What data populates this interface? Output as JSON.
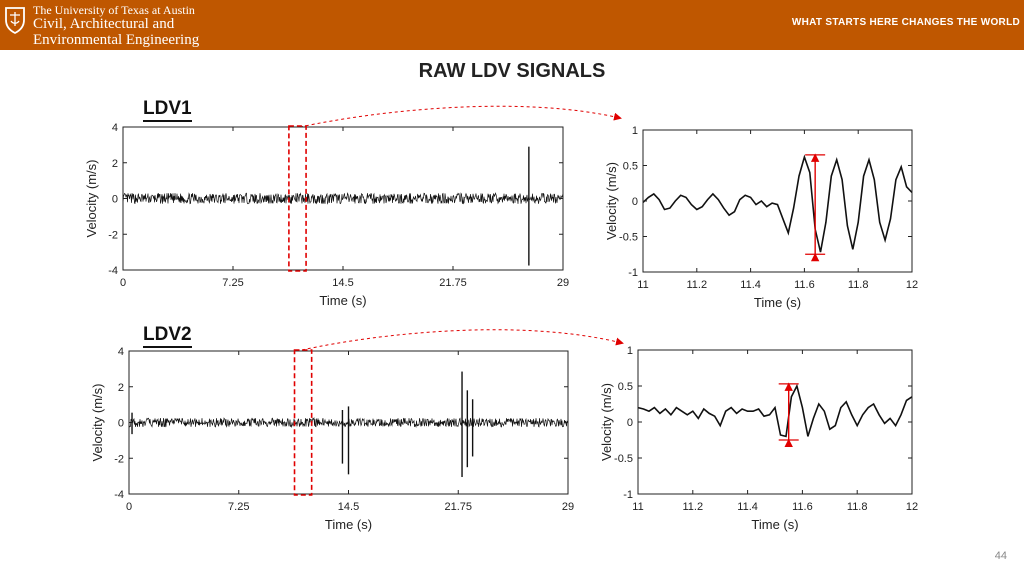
{
  "header": {
    "university": "The University of Texas at Austin",
    "department_line1": "Civil, Architectural and",
    "department_line2": "Environmental Engineering",
    "tagline": "WHAT STARTS HERE CHANGES THE WORLD",
    "color": "#bf5700"
  },
  "title": "RAW LDV SIGNALS",
  "panels": {
    "ldv1_label": "LDV1",
    "ldv2_label": "LDV2"
  },
  "page_number": "44",
  "chart_data": [
    {
      "type": "line",
      "panel": "LDV1",
      "xlabel": "Time (s)",
      "ylabel": "Velocity (m/s)",
      "xlim": [
        0,
        29
      ],
      "ylim": [
        -4,
        4
      ],
      "xticks": [
        0,
        7.25,
        14.5,
        21.75,
        29
      ],
      "xticklabels": [
        "0",
        "7.25",
        "14.5",
        "21.75",
        "29"
      ],
      "yticks": [
        -4,
        -2,
        0,
        2,
        4
      ],
      "yticklabels": [
        "-4",
        "-2",
        "0",
        "2",
        "4"
      ],
      "noise_amplitude": 0.3,
      "spikes": [
        {
          "x": 26.75,
          "max": 2.9,
          "min": -3.75
        }
      ],
      "highlight_window": [
        11,
        12
      ],
      "highlight_color": "#e00000"
    },
    {
      "type": "line",
      "panel": "LDV1-zoom",
      "xlabel": "Time (s)",
      "ylabel": "Velocity (m/s)",
      "xlim": [
        11,
        12
      ],
      "ylim": [
        -1,
        1
      ],
      "xticks": [
        11,
        11.2,
        11.4,
        11.6,
        11.8,
        12
      ],
      "xticklabels": [
        "11",
        "11.2",
        "11.4",
        "11.6",
        "11.8",
        "12"
      ],
      "yticks": [
        -1,
        -0.5,
        0,
        0.5,
        1
      ],
      "yticklabels": [
        "-1",
        "-0.5",
        "0",
        "0.5",
        "1"
      ],
      "x": [
        11,
        11.02,
        11.04,
        11.06,
        11.08,
        11.1,
        11.12,
        11.14,
        11.16,
        11.18,
        11.2,
        11.22,
        11.24,
        11.26,
        11.28,
        11.3,
        11.32,
        11.34,
        11.36,
        11.38,
        11.4,
        11.42,
        11.44,
        11.46,
        11.48,
        11.5,
        11.52,
        11.54,
        11.56,
        11.58,
        11.6,
        11.62,
        11.64,
        11.66,
        11.68,
        11.7,
        11.72,
        11.74,
        11.76,
        11.78,
        11.8,
        11.82,
        11.84,
        11.86,
        11.88,
        11.9,
        11.92,
        11.94,
        11.96,
        11.98,
        12
      ],
      "y": [
        -0.02,
        0.05,
        0.1,
        0.02,
        -0.12,
        -0.1,
        0.0,
        0.08,
        0.05,
        -0.05,
        -0.12,
        -0.08,
        0.02,
        0.1,
        0.02,
        -0.1,
        -0.2,
        -0.15,
        0.02,
        0.08,
        0.05,
        -0.05,
        0.0,
        -0.08,
        -0.03,
        -0.05,
        -0.25,
        -0.45,
        -0.1,
        0.35,
        0.62,
        0.4,
        -0.4,
        -0.72,
        -0.3,
        0.35,
        0.58,
        0.3,
        -0.35,
        -0.68,
        -0.3,
        0.35,
        0.58,
        0.3,
        -0.3,
        -0.55,
        -0.25,
        0.3,
        0.48,
        0.2,
        0.12
      ],
      "annotation": {
        "x": 11.64,
        "y1": -0.75,
        "y2": 0.65
      }
    },
    {
      "type": "line",
      "panel": "LDV2",
      "xlabel": "Time (s)",
      "ylabel": "Velocity (m/s)",
      "xlim": [
        0,
        29
      ],
      "ylim": [
        -4,
        4
      ],
      "xticks": [
        0,
        7.25,
        14.5,
        21.75,
        29
      ],
      "xticklabels": [
        "0",
        "7.25",
        "14.5",
        "21.75",
        "29"
      ],
      "yticks": [
        -4,
        -2,
        0,
        2,
        4
      ],
      "yticklabels": [
        "-4",
        "-2",
        "0",
        "2",
        "4"
      ],
      "noise_amplitude": 0.25,
      "spikes": [
        {
          "x": 0.2,
          "max": 0.55,
          "min": -0.65
        },
        {
          "x": 14.1,
          "max": 0.7,
          "min": -2.3
        },
        {
          "x": 14.5,
          "max": 0.9,
          "min": -2.9
        },
        {
          "x": 22.0,
          "max": 2.85,
          "min": -3.05
        },
        {
          "x": 22.35,
          "max": 1.8,
          "min": -2.5
        },
        {
          "x": 22.7,
          "max": 1.3,
          "min": -1.9
        }
      ],
      "highlight_window": [
        11,
        12
      ],
      "highlight_color": "#e00000"
    },
    {
      "type": "line",
      "panel": "LDV2-zoom",
      "xlabel": "Time (s)",
      "ylabel": "Velocity (m/s)",
      "xlim": [
        11,
        12
      ],
      "ylim": [
        -1,
        1
      ],
      "xticks": [
        11,
        11.2,
        11.4,
        11.6,
        11.8,
        12
      ],
      "xticklabels": [
        "11",
        "11.2",
        "11.4",
        "11.6",
        "11.8",
        "12"
      ],
      "yticks": [
        -1,
        -0.5,
        0,
        0.5,
        1
      ],
      "yticklabels": [
        "-1",
        "-0.5",
        "0",
        "0.5",
        "1"
      ],
      "x": [
        11,
        11.02,
        11.04,
        11.06,
        11.08,
        11.1,
        11.12,
        11.14,
        11.16,
        11.18,
        11.2,
        11.22,
        11.24,
        11.26,
        11.28,
        11.3,
        11.32,
        11.34,
        11.36,
        11.38,
        11.4,
        11.42,
        11.44,
        11.46,
        11.48,
        11.5,
        11.52,
        11.54,
        11.56,
        11.58,
        11.6,
        11.62,
        11.64,
        11.66,
        11.68,
        11.7,
        11.72,
        11.74,
        11.76,
        11.78,
        11.8,
        11.82,
        11.84,
        11.86,
        11.88,
        11.9,
        11.92,
        11.94,
        11.96,
        11.98,
        12
      ],
      "y": [
        0.2,
        0.18,
        0.15,
        0.2,
        0.12,
        0.18,
        0.1,
        0.2,
        0.15,
        0.1,
        0.15,
        0.05,
        0.18,
        0.12,
        0.08,
        -0.05,
        0.15,
        0.2,
        0.12,
        0.18,
        0.15,
        0.15,
        0.18,
        0.08,
        0.1,
        0.2,
        -0.18,
        -0.2,
        0.35,
        0.5,
        0.2,
        -0.2,
        0.05,
        0.25,
        0.15,
        -0.1,
        -0.05,
        0.2,
        0.28,
        0.1,
        -0.05,
        0.1,
        0.2,
        0.25,
        0.1,
        -0.02,
        0.05,
        -0.05,
        0.1,
        0.3,
        0.35
      ],
      "annotation": {
        "x": 11.55,
        "y1": -0.25,
        "y2": 0.53
      }
    }
  ]
}
